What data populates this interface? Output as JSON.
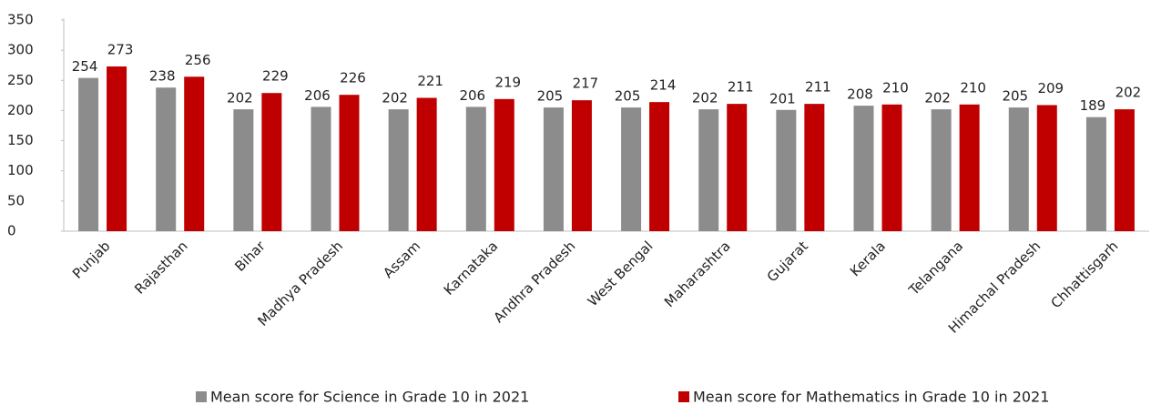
{
  "chart_data": {
    "type": "bar",
    "categories": [
      "Punjab",
      "Rajasthan",
      "Bihar",
      "Madhya Pradesh",
      "Assam",
      "Karnataka",
      "Andhra Pradesh",
      "West Bengal",
      "Maharashtra",
      "Gujarat",
      "Kerala",
      "Telangana",
      "Himachal Pradesh",
      "Chhattisgarh"
    ],
    "series": [
      {
        "name": "Mean score for Science in Grade 10 in 2021",
        "color": "#8c8c8c",
        "values": [
          254,
          238,
          202,
          206,
          202,
          206,
          205,
          205,
          202,
          201,
          208,
          202,
          205,
          189
        ]
      },
      {
        "name": "Mean score for Mathematics in Grade 10 in 2021",
        "color": "#c00000",
        "values": [
          273,
          256,
          229,
          226,
          221,
          219,
          217,
          214,
          211,
          211,
          210,
          210,
          209,
          202
        ]
      }
    ],
    "ylim": [
      0,
      350
    ],
    "yticks": [
      0,
      50,
      100,
      150,
      200,
      250,
      300,
      350
    ],
    "grid": false,
    "legend": "bottom"
  }
}
